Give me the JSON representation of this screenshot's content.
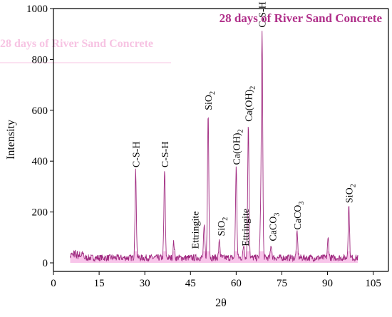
{
  "chart_data": {
    "type": "line",
    "title": "28 days of River Sand Concrete",
    "ghost_title": "28 days of River Sand Concrete",
    "xlabel": "2θ",
    "ylabel": "Intensity",
    "xlim": [
      0,
      110
    ],
    "ylim": [
      -30,
      1000
    ],
    "xticks": [
      0,
      15,
      30,
      45,
      60,
      75,
      90,
      105
    ],
    "yticks": [
      0,
      200,
      400,
      600,
      800,
      1000
    ],
    "grid": false,
    "colors": {
      "line": "#a02a80",
      "fill": "#ef7fd0",
      "title": "#b0308a",
      "ghost": "#f7c4e3"
    },
    "series": [
      {
        "baseline": 20,
        "x_range": [
          5.5,
          100
        ],
        "peaks": [
          {
            "x": 27.0,
            "y": 360
          },
          {
            "x": 36.5,
            "y": 365
          },
          {
            "x": 39.5,
            "y": 80
          },
          {
            "x": 49.5,
            "y": 140
          },
          {
            "x": 50.8,
            "y": 590
          },
          {
            "x": 54.5,
            "y": 85
          },
          {
            "x": 60.0,
            "y": 375
          },
          {
            "x": 62.5,
            "y": 70
          },
          {
            "x": 64.0,
            "y": 545
          },
          {
            "x": 68.0,
            "y": 145
          },
          {
            "x": 68.5,
            "y": 915
          },
          {
            "x": 71.5,
            "y": 70
          },
          {
            "x": 80.0,
            "y": 115
          },
          {
            "x": 90.2,
            "y": 95
          },
          {
            "x": 97.0,
            "y": 225
          }
        ]
      }
    ],
    "annotations": [
      {
        "text": "C-S-H",
        "sub": "",
        "x": 27.0,
        "y": 375
      },
      {
        "text": "C-S-H",
        "sub": "",
        "x": 36.5,
        "y": 375
      },
      {
        "text": "Ettringite",
        "sub": "",
        "x": 46.5,
        "y": 55
      },
      {
        "text": "SiO",
        "sub": "2",
        "x": 50.8,
        "y": 600
      },
      {
        "text": "SiO",
        "sub": "2",
        "x": 55.0,
        "y": 105
      },
      {
        "text": "Ca(OH)",
        "sub": "2",
        "x": 60.0,
        "y": 385
      },
      {
        "text": "Ettringite",
        "sub": "",
        "x": 63.0,
        "y": 65
      },
      {
        "text": "Ca(OH)",
        "sub": "2",
        "x": 64.0,
        "y": 555
      },
      {
        "text": "C-S-H",
        "sub": "",
        "x": 68.5,
        "y": 925
      },
      {
        "text": "CaCO",
        "sub": "3",
        "x": 72.0,
        "y": 85
      },
      {
        "text": "CaCO",
        "sub": "3",
        "x": 80.0,
        "y": 130
      },
      {
        "text": "SiO",
        "sub": "2",
        "x": 97.0,
        "y": 235
      }
    ]
  }
}
